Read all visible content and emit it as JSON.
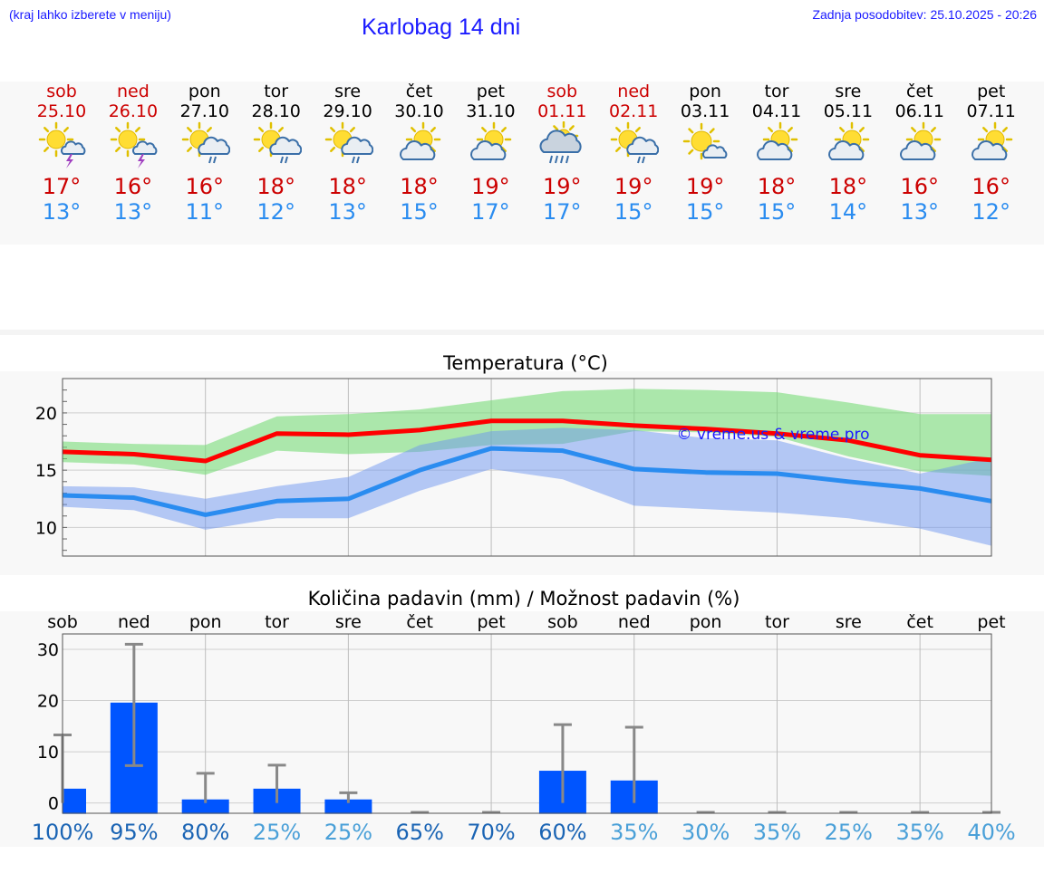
{
  "header": {
    "hint": "(kraj lahko izberete v meniju)",
    "title": "Karlobag 14 dni",
    "updated": "Zadnja posodobitev: 25.10.2025 - 20:26"
  },
  "colors": {
    "weekend": "#cc0000",
    "weekday": "#000000",
    "tmax": "#cc0000",
    "tmin": "#2a8cf0",
    "bar": "#0055ff",
    "pct_dark": "#1a64b4",
    "pct_light": "#4aa0d8"
  },
  "days": [
    {
      "name": "sob",
      "date": "25.10",
      "weekend": true,
      "icon": "sun-cloud-thunder-icon",
      "tmax": "17°",
      "tmin": "13°"
    },
    {
      "name": "ned",
      "date": "26.10",
      "weekend": true,
      "icon": "sun-cloud-thunder-icon",
      "tmax": "16°",
      "tmin": "13°"
    },
    {
      "name": "pon",
      "date": "27.10",
      "weekend": false,
      "icon": "sun-cloud-rain-icon",
      "tmax": "16°",
      "tmin": "11°"
    },
    {
      "name": "tor",
      "date": "28.10",
      "weekend": false,
      "icon": "sun-cloud-rain-icon",
      "tmax": "18°",
      "tmin": "12°"
    },
    {
      "name": "sre",
      "date": "29.10",
      "weekend": false,
      "icon": "sun-cloud-rain-icon",
      "tmax": "18°",
      "tmin": "13°"
    },
    {
      "name": "čet",
      "date": "30.10",
      "weekend": false,
      "icon": "sun-cloud-icon",
      "tmax": "18°",
      "tmin": "15°"
    },
    {
      "name": "pet",
      "date": "31.10",
      "weekend": false,
      "icon": "sun-cloud-icon",
      "tmax": "19°",
      "tmin": "17°"
    },
    {
      "name": "sob",
      "date": "01.11",
      "weekend": true,
      "icon": "cloud-heavy-rain-icon",
      "tmax": "19°",
      "tmin": "17°"
    },
    {
      "name": "ned",
      "date": "02.11",
      "weekend": true,
      "icon": "sun-cloud-rain-icon",
      "tmax": "19°",
      "tmin": "15°"
    },
    {
      "name": "pon",
      "date": "03.11",
      "weekend": false,
      "icon": "sun-small-cloud-icon",
      "tmax": "19°",
      "tmin": "15°"
    },
    {
      "name": "tor",
      "date": "04.11",
      "weekend": false,
      "icon": "sun-cloud-icon",
      "tmax": "18°",
      "tmin": "15°"
    },
    {
      "name": "sre",
      "date": "05.11",
      "weekend": false,
      "icon": "sun-cloud-icon",
      "tmax": "18°",
      "tmin": "14°"
    },
    {
      "name": "čet",
      "date": "06.11",
      "weekend": false,
      "icon": "sun-cloud-icon",
      "tmax": "16°",
      "tmin": "13°"
    },
    {
      "name": "pet",
      "date": "07.11",
      "weekend": false,
      "icon": "sun-cloud-icon",
      "tmax": "16°",
      "tmin": "12°"
    }
  ],
  "chart_data": [
    {
      "type": "line",
      "title": "Temperatura (°C)",
      "ylim": [
        7.5,
        23
      ],
      "yticks": [
        10,
        15,
        20
      ],
      "watermark": "© vreme.us & vreme.pro",
      "x_index": [
        0,
        1,
        2,
        3,
        4,
        5,
        6,
        7,
        8,
        9,
        10,
        11,
        12,
        13
      ],
      "series": [
        {
          "name": "max",
          "color": "#ff0000",
          "values": [
            16.6,
            16.4,
            15.8,
            18.2,
            18.1,
            18.5,
            19.3,
            19.3,
            18.9,
            18.6,
            18.2,
            17.6,
            16.3,
            15.9
          ],
          "band_low": [
            15.7,
            15.5,
            14.6,
            16.7,
            16.4,
            16.6,
            17.2,
            17.3,
            18.4,
            18.3,
            17.9,
            16.2,
            14.9,
            14.5
          ],
          "band_high": [
            17.5,
            17.3,
            17.2,
            19.7,
            19.9,
            20.3,
            21.1,
            21.9,
            22.1,
            22.0,
            21.8,
            20.9,
            19.9,
            19.9
          ]
        },
        {
          "name": "min",
          "color": "#2a8cf0",
          "values": [
            12.8,
            12.6,
            11.1,
            12.3,
            12.5,
            15.0,
            16.9,
            16.7,
            15.1,
            14.8,
            14.7,
            14.0,
            13.4,
            12.3
          ],
          "band_low": [
            11.8,
            11.5,
            9.8,
            10.8,
            10.8,
            13.2,
            15.1,
            14.2,
            11.9,
            11.6,
            11.3,
            10.8,
            9.9,
            8.4
          ],
          "band_high": [
            13.6,
            13.5,
            12.5,
            13.6,
            14.4,
            17.2,
            18.4,
            18.7,
            18.5,
            17.8,
            17.6,
            16.0,
            14.7,
            16.1
          ]
        }
      ]
    },
    {
      "type": "bar",
      "title": "Količina padavin (mm) / Možnost padavin (%)",
      "ylim": [
        -2,
        33
      ],
      "yticks": [
        0,
        10,
        20,
        30
      ],
      "categories": [
        "sob",
        "ned",
        "pon",
        "tor",
        "sre",
        "čet",
        "pet",
        "sob",
        "ned",
        "pon",
        "tor",
        "sre",
        "čet",
        "pet"
      ],
      "values": [
        2.8,
        19.6,
        0.7,
        2.8,
        0.7,
        0,
        0,
        6.3,
        4.4,
        0,
        0,
        0,
        0,
        0
      ],
      "err_high": [
        13.3,
        31.0,
        5.8,
        7.4,
        2.0,
        0,
        0,
        15.3,
        14.8,
        0,
        0,
        0,
        0,
        0
      ],
      "err_low": [
        0,
        7.3,
        0,
        0,
        0,
        0,
        0,
        0,
        0,
        0,
        0,
        0,
        0,
        0
      ],
      "chance": [
        "100%",
        "95%",
        "80%",
        "25%",
        "25%",
        "65%",
        "70%",
        "60%",
        "35%",
        "30%",
        "35%",
        "25%",
        "35%",
        "40%"
      ],
      "chance_dark": [
        true,
        true,
        true,
        false,
        false,
        true,
        true,
        true,
        false,
        false,
        false,
        false,
        false,
        false
      ]
    }
  ]
}
